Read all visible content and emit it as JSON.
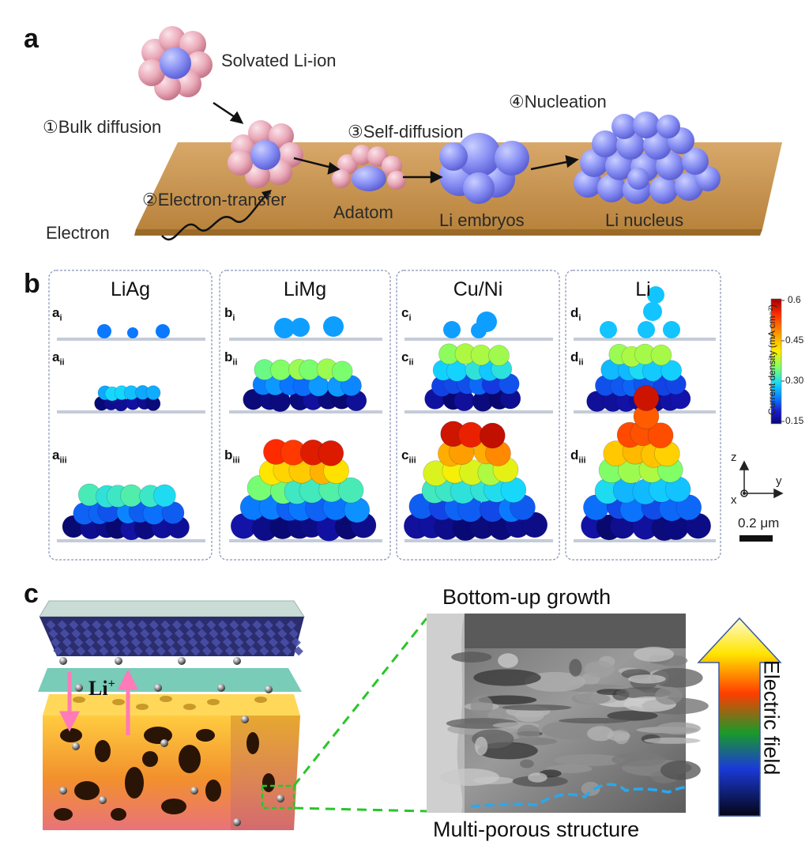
{
  "panel_a": {
    "label": "a",
    "steps": {
      "solvated": "Solvated Li-ion",
      "bulk": "①Bulk diffusion",
      "electron_transfer": "②Electron-transfer",
      "self_diffusion": "③Self-diffusion",
      "nucleation": "④Nucleation"
    },
    "labels": {
      "electron": "Electron",
      "adatom": "Adatom",
      "embryos": "Li embryos",
      "nucleus": "Li nucleus"
    }
  },
  "panel_b": {
    "label": "b",
    "columns": [
      {
        "title": "LiAg",
        "letter": "a",
        "subs": [
          "i",
          "ii",
          "iii"
        ]
      },
      {
        "title": "LiMg",
        "letter": "b",
        "subs": [
          "i",
          "ii",
          "iii"
        ]
      },
      {
        "title": "Cu/Ni",
        "letter": "c",
        "subs": [
          "i",
          "ii",
          "iii"
        ]
      },
      {
        "title": "Li",
        "letter": "d",
        "subs": [
          "i",
          "ii",
          "iii"
        ]
      }
    ],
    "colorbar": {
      "title": "Current density (mA cm⁻²)",
      "ticks": [
        "0.6",
        "0.45",
        "0.30",
        "0.15"
      ],
      "colors": [
        "#9e0000",
        "#ff2a00",
        "#ff9a00",
        "#ffee00",
        "#7dff6a",
        "#14d7ff",
        "#0a78ff",
        "#1a1ad0",
        "#08086e"
      ]
    },
    "axes": {
      "z": "z",
      "y": "y",
      "x": "x"
    },
    "scale_bar": "0.2 μm"
  },
  "panel_c": {
    "label": "c",
    "li_label": "Li",
    "li_charge": "+",
    "top_caption": "Bottom-up growth",
    "bottom_caption": "Multi-porous structure",
    "field_label": "Electric field"
  }
}
